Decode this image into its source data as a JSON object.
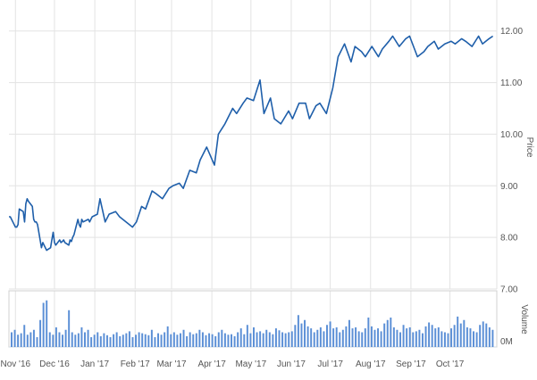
{
  "chart_data": {
    "type": "line",
    "title": "",
    "price_panel": {
      "ylabel": "Price",
      "yticks": [
        "7.00",
        "8.00",
        "9.00",
        "10.00",
        "11.00",
        "12.00"
      ],
      "ylim": [
        7.0,
        12.6
      ],
      "grid": true,
      "series": [
        {
          "x": [
            "2016-10-27",
            "2016-10-28",
            "2016-10-31",
            "2016-11-01",
            "2016-11-02",
            "2016-11-03",
            "2016-11-04",
            "2016-11-07",
            "2016-11-08",
            "2016-11-09",
            "2016-11-10",
            "2016-11-11",
            "2016-11-14",
            "2016-11-15",
            "2016-11-16",
            "2016-11-17",
            "2016-11-18",
            "2016-11-21",
            "2016-11-22",
            "2016-11-23",
            "2016-11-25",
            "2016-11-28",
            "2016-11-29",
            "2016-11-30",
            "2016-12-01",
            "2016-12-02",
            "2016-12-05",
            "2016-12-06",
            "2016-12-07",
            "2016-12-08",
            "2016-12-09",
            "2016-12-12",
            "2016-12-13",
            "2016-12-14",
            "2016-12-15",
            "2016-12-16",
            "2016-12-19",
            "2016-12-20",
            "2016-12-21",
            "2016-12-22",
            "2016-12-23",
            "2016-12-27",
            "2016-12-28",
            "2016-12-29",
            "2016-12-30",
            "2017-01-03",
            "2017-01-05",
            "2017-01-09",
            "2017-01-12",
            "2017-01-17",
            "2017-01-20",
            "2017-01-25",
            "2017-01-30",
            "2017-02-02",
            "2017-02-06",
            "2017-02-09",
            "2017-02-14",
            "2017-02-17",
            "2017-02-22",
            "2017-02-27",
            "2017-03-02",
            "2017-03-07",
            "2017-03-10",
            "2017-03-15",
            "2017-03-20",
            "2017-03-23",
            "2017-03-28",
            "2017-04-03",
            "2017-04-06",
            "2017-04-11",
            "2017-04-17",
            "2017-04-20",
            "2017-04-25",
            "2017-04-28",
            "2017-05-03",
            "2017-05-08",
            "2017-05-11",
            "2017-05-16",
            "2017-05-19",
            "2017-05-24",
            "2017-05-30",
            "2017-06-02",
            "2017-06-07",
            "2017-06-12",
            "2017-06-15",
            "2017-06-20",
            "2017-06-23",
            "2017-06-28",
            "2017-07-03",
            "2017-07-07",
            "2017-07-12",
            "2017-07-17",
            "2017-07-20",
            "2017-07-25",
            "2017-07-28",
            "2017-08-02",
            "2017-08-07",
            "2017-08-10",
            "2017-08-15",
            "2017-08-18",
            "2017-08-23",
            "2017-08-28",
            "2017-08-31",
            "2017-09-06",
            "2017-09-11",
            "2017-09-14",
            "2017-09-19",
            "2017-09-22",
            "2017-09-27",
            "2017-10-02",
            "2017-10-05",
            "2017-10-10",
            "2017-10-13",
            "2017-10-18",
            "2017-10-23",
            "2017-10-26",
            "2017-10-31",
            "2017-11-03"
          ],
          "y": [
            8.4,
            8.4,
            8.25,
            8.2,
            8.2,
            8.25,
            8.55,
            8.5,
            8.3,
            8.65,
            8.75,
            8.7,
            8.6,
            8.35,
            8.3,
            8.3,
            8.25,
            7.8,
            7.9,
            7.85,
            7.75,
            7.8,
            7.95,
            8.1,
            7.9,
            7.85,
            7.95,
            7.9,
            7.92,
            7.95,
            7.9,
            7.85,
            7.95,
            7.92,
            8.0,
            8.05,
            8.35,
            8.25,
            8.2,
            8.35,
            8.3,
            8.35,
            8.3,
            8.35,
            8.4,
            8.45,
            8.75,
            8.3,
            8.45,
            8.5,
            8.4,
            8.3,
            8.2,
            8.3,
            8.6,
            8.55,
            8.9,
            8.85,
            8.75,
            8.95,
            9.0,
            9.05,
            8.95,
            9.3,
            9.25,
            9.5,
            9.75,
            9.4,
            10.0,
            10.2,
            10.5,
            10.4,
            10.6,
            10.7,
            10.65,
            11.05,
            10.4,
            10.7,
            10.3,
            10.2,
            10.45,
            10.3,
            10.6,
            10.6,
            10.3,
            10.55,
            10.6,
            10.4,
            10.9,
            11.5,
            11.75,
            11.4,
            11.7,
            11.6,
            11.5,
            11.7,
            11.5,
            11.65,
            11.8,
            11.9,
            11.7,
            11.85,
            11.9,
            11.5,
            11.6,
            11.7,
            11.8,
            11.65,
            11.75,
            11.8,
            11.75,
            11.85,
            11.8,
            11.7,
            11.9,
            11.75,
            11.85,
            11.9
          ]
        }
      ]
    },
    "volume_panel": {
      "ylabel": "Volume",
      "yticks": [
        "0M"
      ],
      "ylim": [
        0,
        100
      ],
      "values": [
        30,
        35,
        25,
        28,
        45,
        25,
        30,
        35,
        20,
        55,
        90,
        95,
        30,
        25,
        40,
        30,
        25,
        35,
        75,
        30,
        25,
        28,
        40,
        30,
        35,
        20,
        25,
        30,
        22,
        28,
        24,
        20,
        26,
        30,
        22,
        25,
        28,
        32,
        20,
        25,
        30,
        28,
        26,
        24,
        35,
        20,
        28,
        25,
        30,
        42,
        26,
        30,
        25,
        28,
        35,
        22,
        30,
        26,
        28,
        35,
        30,
        24,
        28,
        26,
        22,
        30,
        35,
        28,
        25,
        26,
        22,
        30,
        38,
        26,
        45,
        28,
        40,
        30,
        32,
        28,
        35,
        30,
        26,
        38,
        34,
        30,
        28,
        30,
        32,
        45,
        65,
        48,
        55,
        42,
        38,
        30,
        35,
        40,
        32,
        45,
        52,
        38,
        40,
        30,
        35,
        42,
        55,
        38,
        40,
        32,
        30,
        38,
        60,
        42,
        35,
        38,
        32,
        48,
        55,
        60,
        40,
        35,
        30,
        45,
        38,
        40,
        30,
        32,
        35,
        28,
        42,
        50,
        45,
        38,
        40,
        32,
        30,
        28,
        38,
        45,
        62,
        48,
        55,
        40,
        38,
        32,
        30,
        45,
        52,
        48,
        40,
        35
      ]
    },
    "x_ticks": [
      "Nov '16",
      "Dec '16",
      "Jan '17",
      "Feb '17",
      "Mar '17",
      "Apr '17",
      "May '17",
      "Jun '17",
      "Jul '17",
      "Aug '17",
      "Sep '17",
      "Oct '17"
    ]
  }
}
